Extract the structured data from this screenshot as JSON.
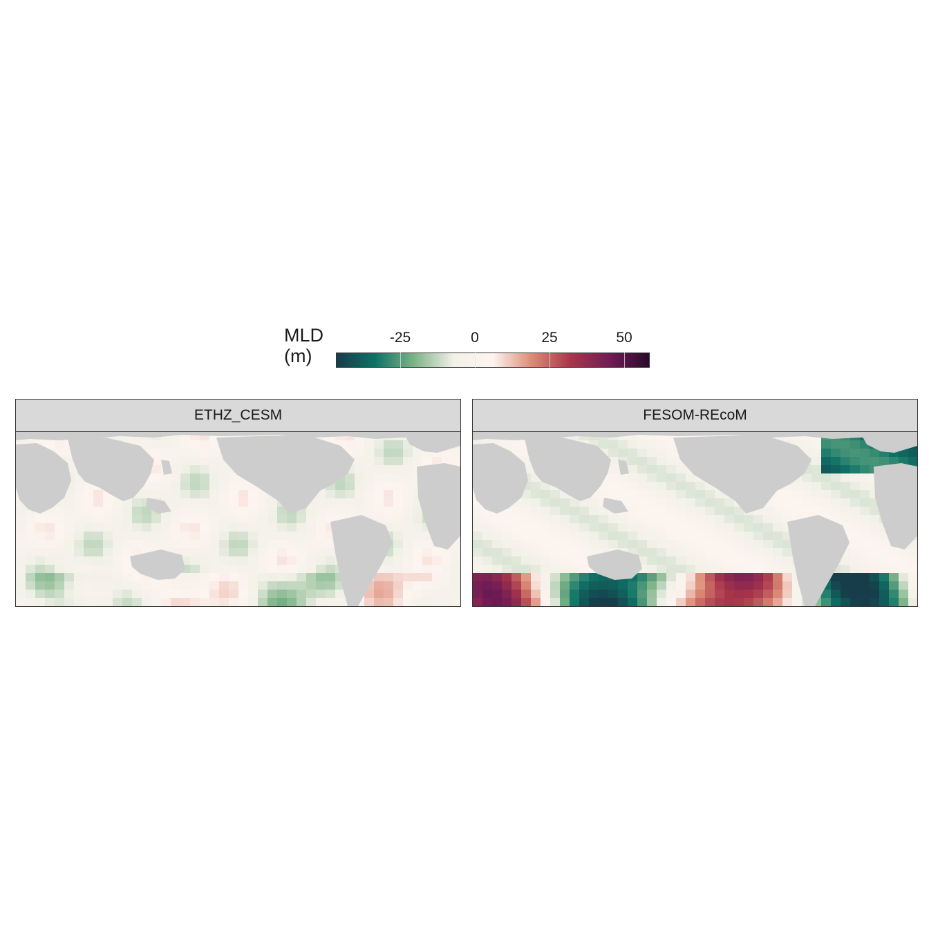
{
  "legend": {
    "title_line1": "MLD",
    "title_line2": "(m)",
    "ticks": [
      {
        "label": "-25",
        "value": -25
      },
      {
        "label": "0",
        "value": 0
      },
      {
        "label": "25",
        "value": 25
      },
      {
        "label": "50",
        "value": 50
      }
    ],
    "range": [
      -42,
      58
    ],
    "colors": [
      "#173c4a",
      "#0e7367",
      "#7eb488",
      "#f2f1e8",
      "#fdf4f0",
      "#dc8b75",
      "#a8354a",
      "#701c55",
      "#2a0a2b"
    ]
  },
  "panels": [
    {
      "title": "ETHZ_CESM"
    },
    {
      "title": "FESOM-REcoM"
    }
  ],
  "map_colors": {
    "land": "#cdcdcd",
    "nodata": "#ffffff"
  }
}
